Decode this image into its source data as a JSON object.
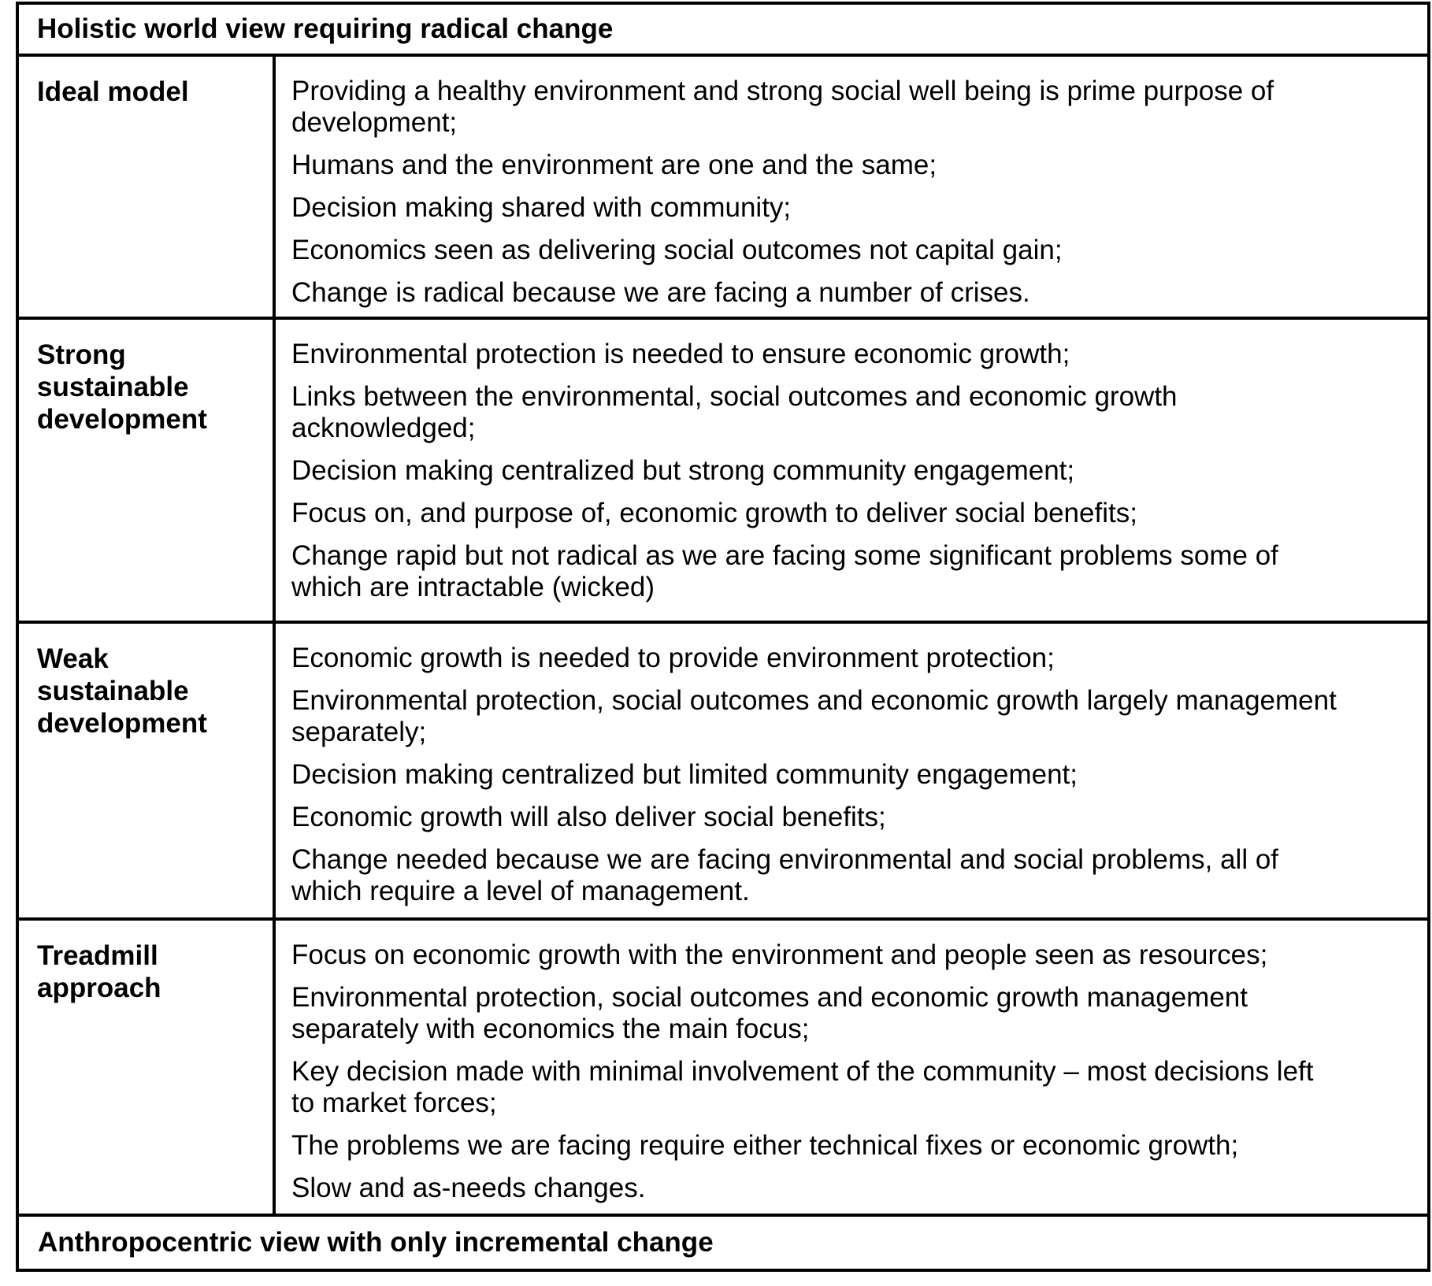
{
  "table": {
    "header": "Holistic world view requiring radical change",
    "footer": "Anthropocentric view with only incremental change",
    "rows": [
      {
        "label": "Ideal model",
        "points": [
          "Providing a healthy environment and strong social well being is prime purpose of\ndevelopment;",
          "Humans and the environment are one and the same;",
          "Decision making shared with community;",
          "Economics seen as delivering social outcomes not capital gain;",
          "Change is radical because we are facing a number of crises."
        ]
      },
      {
        "label": "Strong\nsustainable\ndevelopment",
        "points": [
          "Environmental protection is needed to ensure economic growth;",
          "Links between the environmental, social outcomes and economic growth\nacknowledged;",
          "Decision making centralized but strong community engagement;",
          "Focus on, and purpose of, economic growth to deliver social benefits;",
          "Change rapid but not radical as we are facing some significant problems some of\nwhich are intractable (wicked)"
        ]
      },
      {
        "label": "Weak\nsustainable\ndevelopment",
        "points": [
          "Economic growth is needed to provide environment protection;",
          "Environmental protection, social outcomes and economic growth largely management\nseparately;",
          "Decision making centralized but limited community engagement;",
          "Economic growth will also deliver social benefits;",
          "Change needed because we are facing environmental and social problems, all of\nwhich require a level of management."
        ]
      },
      {
        "label": "Treadmill\napproach",
        "points": [
          "Focus on economic growth with the environment and people seen as resources;",
          "Environmental protection, social outcomes and economic growth management\nseparately with economics the main focus;",
          "Key decision made with minimal involvement of the community – most decisions left\nto market forces;",
          "The problems we are facing require either technical fixes or economic growth;",
          "Slow and as-needs changes."
        ]
      }
    ]
  }
}
